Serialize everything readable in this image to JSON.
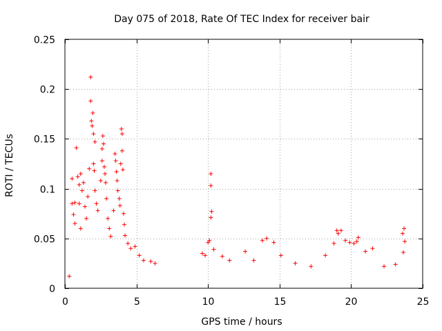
{
  "chart_data": {
    "type": "scatter",
    "title": "Day 075 of 2018, Rate Of TEC Index for receiver bair",
    "xlabel": "GPS time / hours",
    "ylabel": "ROTI / TECUs",
    "xlim": [
      0,
      25
    ],
    "ylim": [
      0,
      0.25
    ],
    "xticks": [
      0,
      5,
      10,
      15,
      20,
      25
    ],
    "yticks": [
      0,
      0.05,
      0.1,
      0.15,
      0.2,
      0.25
    ],
    "xtick_labels": [
      "0",
      "5",
      "10",
      "15",
      "20",
      "25"
    ],
    "ytick_labels": [
      "0",
      "0.05",
      "0.1",
      "0.15",
      "0.2",
      "0.25"
    ],
    "grid": true,
    "marker": "plus",
    "color": "#ff0000",
    "series": [
      {
        "name": "ROTI",
        "points": [
          [
            0.3,
            0.012
          ],
          [
            0.5,
            0.11
          ],
          [
            0.5,
            0.085
          ],
          [
            0.6,
            0.074
          ],
          [
            0.7,
            0.086
          ],
          [
            0.7,
            0.065
          ],
          [
            0.8,
            0.141
          ],
          [
            0.9,
            0.112
          ],
          [
            1.0,
            0.104
          ],
          [
            1.0,
            0.085
          ],
          [
            1.1,
            0.115
          ],
          [
            1.1,
            0.06
          ],
          [
            1.2,
            0.098
          ],
          [
            1.3,
            0.106
          ],
          [
            1.4,
            0.082
          ],
          [
            1.5,
            0.07
          ],
          [
            1.6,
            0.092
          ],
          [
            1.7,
            0.12
          ],
          [
            1.8,
            0.212
          ],
          [
            1.8,
            0.188
          ],
          [
            1.85,
            0.168
          ],
          [
            1.9,
            0.163
          ],
          [
            1.95,
            0.176
          ],
          [
            2.0,
            0.155
          ],
          [
            2.0,
            0.125
          ],
          [
            2.05,
            0.118
          ],
          [
            2.1,
            0.147
          ],
          [
            2.1,
            0.098
          ],
          [
            2.2,
            0.085
          ],
          [
            2.3,
            0.078
          ],
          [
            2.5,
            0.108
          ],
          [
            2.6,
            0.14
          ],
          [
            2.6,
            0.128
          ],
          [
            2.65,
            0.153
          ],
          [
            2.7,
            0.145
          ],
          [
            2.75,
            0.122
          ],
          [
            2.8,
            0.115
          ],
          [
            2.85,
            0.106
          ],
          [
            2.9,
            0.09
          ],
          [
            3.0,
            0.07
          ],
          [
            3.1,
            0.06
          ],
          [
            3.2,
            0.052
          ],
          [
            3.4,
            0.078
          ],
          [
            3.5,
            0.135
          ],
          [
            3.55,
            0.128
          ],
          [
            3.6,
            0.117
          ],
          [
            3.65,
            0.108
          ],
          [
            3.7,
            0.098
          ],
          [
            3.8,
            0.09
          ],
          [
            3.85,
            0.083
          ],
          [
            3.9,
            0.125
          ],
          [
            3.95,
            0.16
          ],
          [
            4.0,
            0.155
          ],
          [
            4.0,
            0.138
          ],
          [
            4.05,
            0.119
          ],
          [
            4.1,
            0.075
          ],
          [
            4.15,
            0.064
          ],
          [
            4.2,
            0.053
          ],
          [
            4.4,
            0.045
          ],
          [
            4.6,
            0.04
          ],
          [
            4.9,
            0.042
          ],
          [
            5.2,
            0.033
          ],
          [
            5.5,
            0.028
          ],
          [
            6.0,
            0.027
          ],
          [
            6.3,
            0.025
          ],
          [
            9.6,
            0.035
          ],
          [
            9.8,
            0.033
          ],
          [
            10.0,
            0.046
          ],
          [
            10.1,
            0.048
          ],
          [
            10.2,
            0.115
          ],
          [
            10.2,
            0.103
          ],
          [
            10.25,
            0.077
          ],
          [
            10.2,
            0.071
          ],
          [
            10.4,
            0.039
          ],
          [
            11.0,
            0.032
          ],
          [
            11.5,
            0.028
          ],
          [
            12.6,
            0.037
          ],
          [
            13.2,
            0.028
          ],
          [
            13.8,
            0.048
          ],
          [
            14.1,
            0.05
          ],
          [
            14.6,
            0.046
          ],
          [
            15.1,
            0.033
          ],
          [
            16.1,
            0.025
          ],
          [
            17.2,
            0.022
          ],
          [
            18.2,
            0.033
          ],
          [
            18.8,
            0.045
          ],
          [
            19.0,
            0.058
          ],
          [
            19.1,
            0.055
          ],
          [
            19.3,
            0.058
          ],
          [
            19.6,
            0.048
          ],
          [
            19.9,
            0.046
          ],
          [
            20.2,
            0.045
          ],
          [
            20.4,
            0.047
          ],
          [
            20.5,
            0.051
          ],
          [
            21.0,
            0.037
          ],
          [
            21.5,
            0.04
          ],
          [
            22.3,
            0.022
          ],
          [
            23.1,
            0.024
          ],
          [
            23.6,
            0.055
          ],
          [
            23.7,
            0.06
          ],
          [
            23.75,
            0.047
          ],
          [
            23.65,
            0.036
          ]
        ]
      }
    ]
  }
}
